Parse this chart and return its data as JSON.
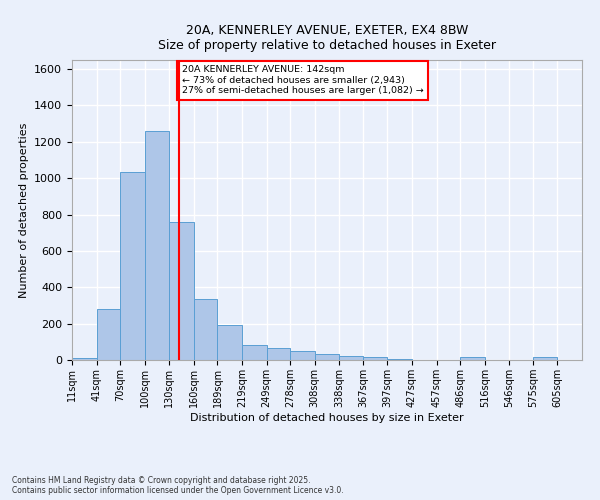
{
  "title_line1": "20A, KENNERLEY AVENUE, EXETER, EX4 8BW",
  "title_line2": "Size of property relative to detached houses in Exeter",
  "xlabel": "Distribution of detached houses by size in Exeter",
  "ylabel": "Number of detached properties",
  "bin_labels": [
    "11sqm",
    "41sqm",
    "70sqm",
    "100sqm",
    "130sqm",
    "160sqm",
    "189sqm",
    "219sqm",
    "249sqm",
    "278sqm",
    "308sqm",
    "338sqm",
    "367sqm",
    "397sqm",
    "427sqm",
    "457sqm",
    "486sqm",
    "516sqm",
    "546sqm",
    "575sqm",
    "605sqm"
  ],
  "bin_edges": [
    11,
    41,
    70,
    100,
    130,
    160,
    189,
    219,
    249,
    278,
    308,
    338,
    367,
    397,
    427,
    457,
    486,
    516,
    546,
    575,
    605
  ],
  "bar_heights": [
    10,
    280,
    1035,
    1260,
    760,
    335,
    190,
    85,
    65,
    50,
    35,
    20,
    15,
    5,
    0,
    0,
    15,
    0,
    0,
    15,
    0
  ],
  "bar_color": "#aec6e8",
  "bar_edge_color": "#5a9fd4",
  "vline_x": 142,
  "vline_color": "red",
  "ylim": [
    0,
    1650
  ],
  "yticks": [
    0,
    200,
    400,
    600,
    800,
    1000,
    1200,
    1400,
    1600
  ],
  "annotation_text": "20A KENNERLEY AVENUE: 142sqm\n← 73% of detached houses are smaller (2,943)\n27% of semi-detached houses are larger (1,082) →",
  "annotation_box_color": "white",
  "annotation_box_edge_color": "red",
  "bg_color": "#eaf0fb",
  "grid_color": "white",
  "footer_line1": "Contains HM Land Registry data © Crown copyright and database right 2025.",
  "footer_line2": "Contains public sector information licensed under the Open Government Licence v3.0."
}
